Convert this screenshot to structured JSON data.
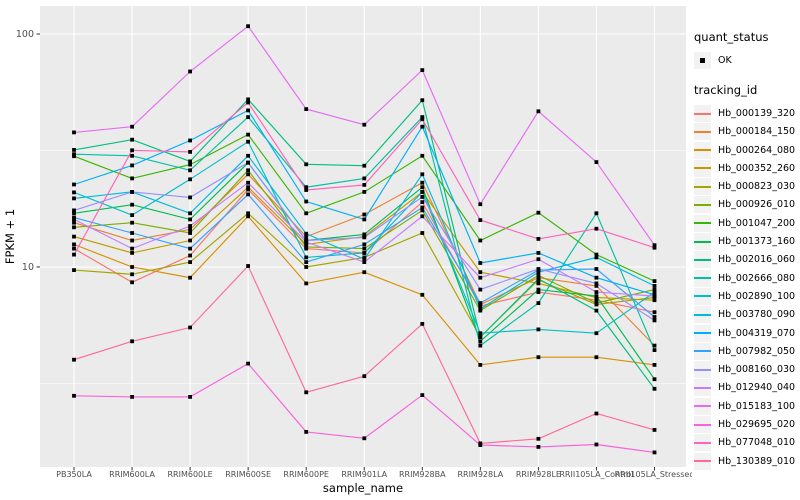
{
  "figure": {
    "panel_bg": "#EBEBEB",
    "grid_color": "#FFFFFF",
    "tick_label_color": "#4D4D4D",
    "marker_color": "#000000"
  },
  "axes": {
    "x_title": "sample_name",
    "y_title": "FPKM + 1",
    "y_ticks": [
      {
        "label": "100",
        "value": 100
      },
      {
        "label": "10",
        "value": 10
      }
    ]
  },
  "legend": {
    "quant_status_title": "quant_status",
    "quant_status_items": [
      "OK"
    ],
    "tracking_id_title": "tracking_id"
  },
  "chart_data": {
    "type": "line",
    "y_scale": "log10",
    "xlabel": "sample_name",
    "ylabel": "FPKM + 1",
    "ylim": [
      1.4,
      130
    ],
    "grid": true,
    "legend_position": "right",
    "minor_breaks": [
      31.62,
      3.162
    ],
    "major_breaks": [
      100,
      10
    ],
    "quant_status": "OK",
    "categories": [
      "PB350LA",
      "RRIM600LA",
      "RRIM600LE",
      "RRIM600SE",
      "RRIM600PE",
      "RRIM901LA",
      "RRIM928BA",
      "RRIM928LA",
      "RRIM928LE",
      "RRII105LA_Control",
      "RRII105LA_Stressed"
    ],
    "series": [
      {
        "name": "Hb_000139_320",
        "color": "#F8766D",
        "values": [
          12.0,
          8.6,
          11.2,
          21.5,
          12.0,
          11.5,
          19.0,
          6.8,
          7.8,
          7.2,
          6.4
        ]
      },
      {
        "name": "Hb_000184_150",
        "color": "#EA8331",
        "values": [
          15.5,
          13.0,
          14.5,
          25.0,
          13.5,
          16.8,
          23.0,
          6.9,
          9.0,
          8.3,
          4.6
        ]
      },
      {
        "name": "Hb_000264_080",
        "color": "#D89000",
        "values": [
          12.5,
          10.0,
          9.0,
          16.5,
          8.5,
          9.5,
          7.6,
          3.8,
          4.1,
          4.1,
          3.8
        ]
      },
      {
        "name": "Hb_000352_260",
        "color": "#C09B00",
        "values": [
          13.5,
          11.5,
          13.0,
          22.0,
          12.5,
          13.5,
          21.0,
          9.5,
          8.5,
          7.4,
          7.2
        ]
      },
      {
        "name": "Hb_000823_030",
        "color": "#A3A500",
        "values": [
          9.7,
          9.3,
          10.5,
          17.0,
          10.0,
          11.0,
          14.0,
          5.0,
          8.8,
          6.9,
          7.4
        ]
      },
      {
        "name": "Hb_000926_010",
        "color": "#7CAE00",
        "values": [
          14.8,
          15.5,
          14.0,
          26.0,
          12.2,
          12.0,
          17.5,
          6.5,
          9.2,
          7.0,
          8.0
        ]
      },
      {
        "name": "Hb_001047_200",
        "color": "#39B600",
        "values": [
          29.9,
          24.0,
          27.5,
          37.0,
          17.0,
          21.0,
          30.0,
          13.0,
          17.1,
          11.3,
          8.7
        ]
      },
      {
        "name": "Hb_001373_160",
        "color": "#00BB4E",
        "values": [
          17.0,
          18.5,
          16.0,
          28.0,
          13.0,
          13.8,
          22.0,
          4.8,
          8.0,
          7.5,
          3.3
        ]
      },
      {
        "name": "Hb_002016_060",
        "color": "#00BF7D",
        "values": [
          31.8,
          35.2,
          28.4,
          52.4,
          27.6,
          27.2,
          52.0,
          5.0,
          8.9,
          6.5,
          3.0
        ]
      },
      {
        "name": "Hb_002666_080",
        "color": "#00C1A3",
        "values": [
          30.5,
          30.0,
          26.0,
          44.0,
          22.0,
          24.0,
          44.0,
          4.6,
          7.0,
          17.0,
          4.4
        ]
      },
      {
        "name": "Hb_002890_100",
        "color": "#00BFC4",
        "values": [
          20.9,
          16.7,
          23.8,
          34.5,
          11.0,
          11.5,
          21.0,
          5.2,
          5.4,
          5.2,
          7.8
        ]
      },
      {
        "name": "Hb_003780_090",
        "color": "#00BAE0",
        "values": [
          19.7,
          21.0,
          17.0,
          30.0,
          13.9,
          10.8,
          25.0,
          6.6,
          9.5,
          11.0,
          8.3
        ]
      },
      {
        "name": "Hb_004319_070",
        "color": "#00B0F6",
        "values": [
          22.6,
          27.3,
          34.9,
          47.0,
          19.1,
          16.0,
          40.0,
          10.4,
          11.5,
          9.0,
          7.6
        ]
      },
      {
        "name": "Hb_007982_050",
        "color": "#35A2FF",
        "values": [
          16.3,
          14.0,
          12.0,
          20.5,
          10.5,
          12.5,
          18.0,
          7.0,
          9.7,
          9.8,
          6.1
        ]
      },
      {
        "name": "Hb_008160_030",
        "color": "#9590FF",
        "values": [
          17.5,
          21.0,
          19.9,
          28.1,
          13.0,
          13.4,
          20.0,
          8.0,
          9.8,
          8.5,
          5.9
        ]
      },
      {
        "name": "Hb_012940_040",
        "color": "#C77CFF",
        "values": [
          16.0,
          12.0,
          15.0,
          23.0,
          12.8,
          10.5,
          16.5,
          9.0,
          10.8,
          7.8,
          7.5
        ]
      },
      {
        "name": "Hb_015183_100",
        "color": "#E76BF3",
        "values": [
          37.8,
          40.0,
          69.0,
          108.0,
          47.6,
          40.8,
          70.0,
          18.6,
          46.6,
          28.2,
          12.4
        ]
      },
      {
        "name": "Hb_029695_020",
        "color": "#FA62DB",
        "values": [
          2.8,
          2.77,
          2.77,
          3.85,
          1.96,
          1.84,
          2.82,
          1.72,
          1.69,
          1.73,
          1.6
        ]
      },
      {
        "name": "Hb_077048_010",
        "color": "#FF62BC",
        "values": [
          11.3,
          31.7,
          31.2,
          50.8,
          21.4,
          22.5,
          43.1,
          15.9,
          13.2,
          14.6,
          12.1
        ]
      },
      {
        "name": "Hb_130389_010",
        "color": "#FF6A98",
        "values": [
          4.0,
          4.8,
          5.5,
          10.1,
          2.9,
          3.4,
          5.7,
          1.75,
          1.83,
          2.35,
          2.0
        ]
      }
    ]
  }
}
